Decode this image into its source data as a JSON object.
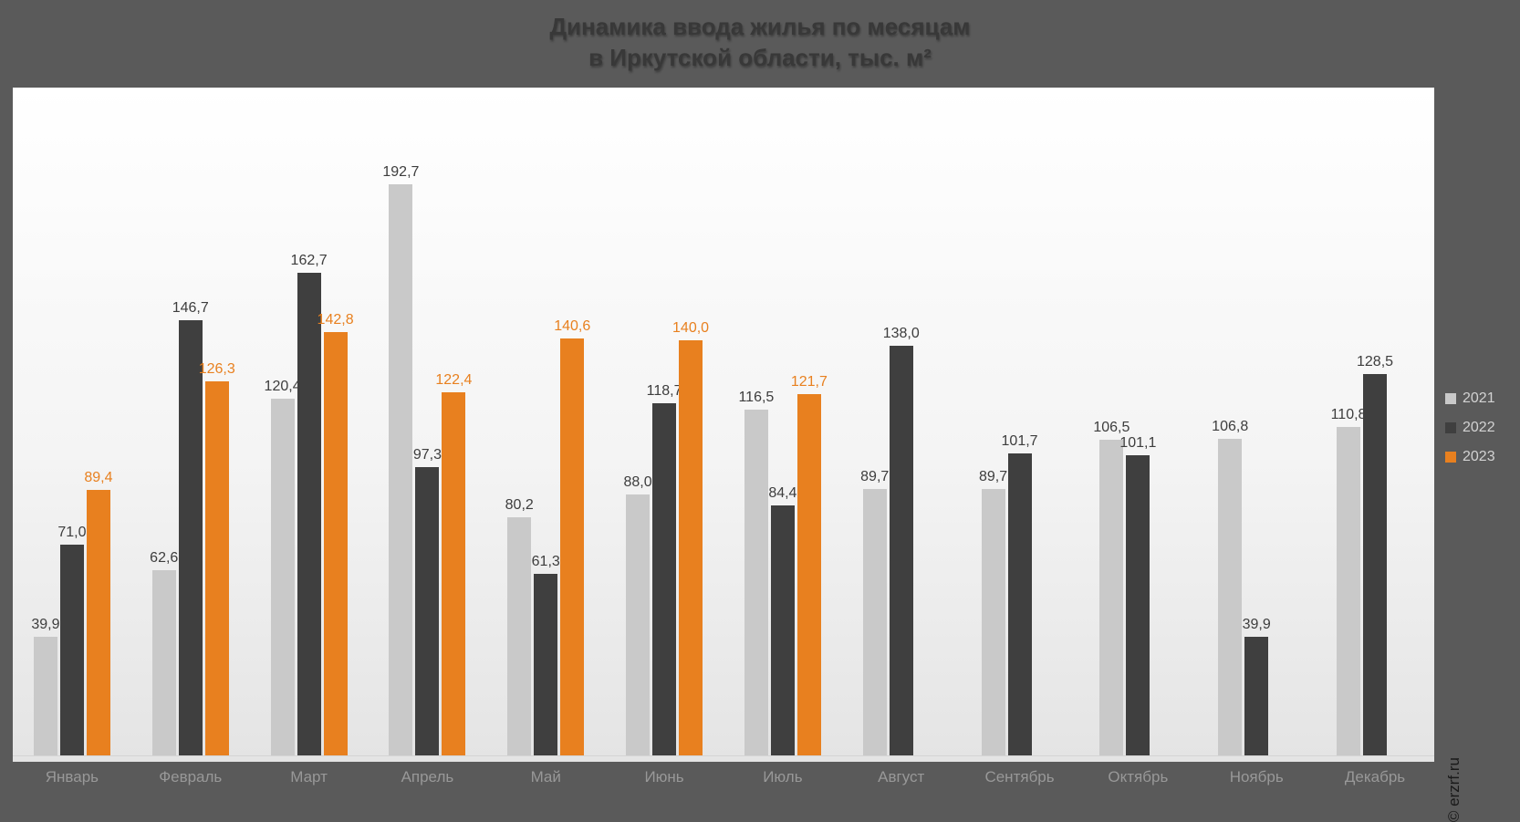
{
  "title": {
    "line1": "Динамика ввода жилья по месяцам",
    "line2": "в Иркутской области, тыс. м²"
  },
  "watermark": "© erzrf.ru",
  "colors": {
    "background": "#5a5a5a",
    "plot_gradient_top": "#ffffff",
    "plot_gradient_bottom": "#e4e4e4",
    "series_2021": "#c9c9c9",
    "series_2022": "#3f3f3f",
    "series_2023": "#e8801f",
    "value_label_dark": "#3d3d3d",
    "month_label": "#989898",
    "legend_text": "#d2d2d2",
    "title_text": "#383838",
    "watermark_text": "#1a1a1a"
  },
  "chart_data": {
    "type": "bar",
    "title": "Динамика ввода жилья по месяцам в Иркутской области, тыс. м²",
    "xlabel": "",
    "ylabel": "тыс. м²",
    "ylim": [
      0,
      225
    ],
    "grid": false,
    "legend_position": "right",
    "decimal_separator": ",",
    "categories": [
      "Январь",
      "Февраль",
      "Март",
      "Апрель",
      "Май",
      "Июнь",
      "Июль",
      "Август",
      "Сентябрь",
      "Октябрь",
      "Ноябрь",
      "Декабрь"
    ],
    "series": [
      {
        "name": "2021",
        "color": "#c9c9c9",
        "value_color": "#3d3d3d",
        "values": [
          39.9,
          62.6,
          120.4,
          192.7,
          80.2,
          88.0,
          116.5,
          89.7,
          89.7,
          106.5,
          106.8,
          110.8
        ]
      },
      {
        "name": "2022",
        "color": "#3f3f3f",
        "value_color": "#3d3d3d",
        "values": [
          71.0,
          146.7,
          162.7,
          97.3,
          61.3,
          118.7,
          84.4,
          138.0,
          101.7,
          101.1,
          39.9,
          128.5
        ]
      },
      {
        "name": "2023",
        "color": "#e8801f",
        "value_color": "#e8801f",
        "values": [
          89.4,
          126.3,
          142.8,
          122.4,
          140.6,
          140.0,
          121.7,
          null,
          null,
          null,
          null,
          null
        ]
      }
    ]
  }
}
